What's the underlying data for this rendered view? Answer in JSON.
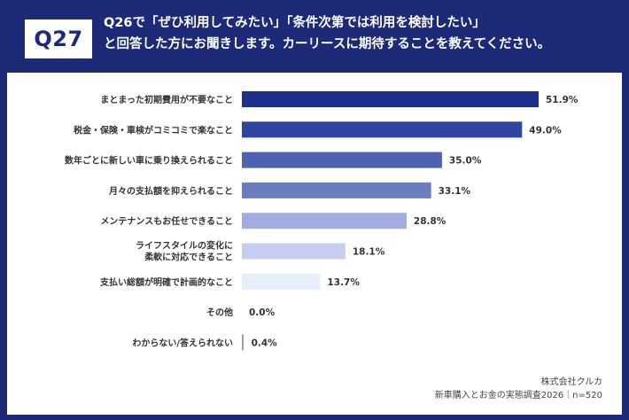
{
  "header": {
    "badge": "Q27",
    "title_line1": "Q26で「ぜひ利用してみたい」「条件次第では利用を検討したい」",
    "title_line2": "と回答した方にお聞きします。カーリースに期待することを教えてください。"
  },
  "footer": {
    "company": "株式会社クルカ",
    "survey": "新車購入とお金の実態調査2026｜n=520"
  },
  "colors": {
    "header_bg": "#1c2a78",
    "panel_bg": "#ffffff"
  },
  "chart_data": {
    "type": "bar",
    "orientation": "horizontal",
    "categories": [
      "まとまった初期費用が不要なこと",
      "税金・保険・車検がコミコミで楽なこと",
      "数年ごとに新しい車に乗り換えられること",
      "月々の支払額を抑えられること",
      "メンテナンスもお任せできること",
      "ライフスタイルの変化に\n柔軟に対応できること",
      "支払い総額が明確で計画的なこと",
      "その他",
      "わからない/答えられない"
    ],
    "values": [
      51.9,
      49.0,
      35.0,
      33.1,
      28.8,
      18.1,
      13.7,
      0.0,
      0.4
    ],
    "value_labels": [
      "51.9%",
      "49.0%",
      "35.0%",
      "33.1%",
      "28.8%",
      "18.1%",
      "13.7%",
      "0.0%",
      "0.4%"
    ],
    "bar_colors": [
      "#1d2f8c",
      "#2f45a0",
      "#4d62b1",
      "#6b7dc0",
      "#a3ace0",
      "#c6cdee",
      "#e6eefb",
      "#9aa1b8",
      "#9aa1b8"
    ],
    "xlim": [
      0,
      60
    ],
    "grid": false,
    "legend": "none"
  }
}
